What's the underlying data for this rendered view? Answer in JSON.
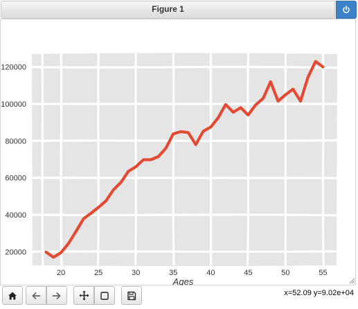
{
  "window": {
    "title": "Figure 1"
  },
  "toolbar": {
    "buttons": [
      {
        "icon": "home-icon",
        "label": "Home"
      },
      {
        "icon": "back-icon",
        "label": "Back"
      },
      {
        "icon": "forward-icon",
        "label": "Forward"
      },
      {
        "icon": "pan-icon",
        "label": "Pan"
      },
      {
        "icon": "zoom-rect-icon",
        "label": "Zoom"
      },
      {
        "icon": "save-icon",
        "label": "Save"
      }
    ]
  },
  "status": {
    "coords": "x=52.09 y=9.02e+04"
  },
  "colors": {
    "line": "#e34a33",
    "panel": "#e5e5e5",
    "grid": "#ffffff",
    "accent": "#3b82c9"
  },
  "chart_data": {
    "type": "line",
    "title": "",
    "xlabel": "Ages",
    "ylabel": "",
    "xlim": [
      16.1,
      56.9
    ],
    "ylim": [
      12600,
      127400
    ],
    "xticks": [
      20,
      25,
      30,
      35,
      40,
      45,
      50,
      55
    ],
    "yticks": [
      20000,
      40000,
      60000,
      80000,
      100000,
      120000
    ],
    "ytick_labels": [
      "20000",
      "40000",
      "60000",
      "80000",
      "100000",
      "120000"
    ],
    "grid": true,
    "style": "xkcd",
    "series": [
      {
        "name": "",
        "x": [
          18,
          19,
          20,
          21,
          22,
          23,
          24,
          25,
          26,
          27,
          28,
          29,
          30,
          31,
          32,
          33,
          34,
          35,
          36,
          37,
          38,
          39,
          40,
          41,
          42,
          43,
          44,
          45,
          46,
          47,
          48,
          49,
          50,
          51,
          52,
          53,
          54,
          55
        ],
        "values": [
          19800,
          17000,
          19500,
          24500,
          31000,
          37800,
          40800,
          44000,
          47500,
          53500,
          57500,
          63500,
          66000,
          69800,
          69800,
          71500,
          76000,
          83800,
          85000,
          84500,
          78000,
          85200,
          87500,
          92500,
          99700,
          95500,
          98000,
          94000,
          99500,
          103000,
          112000,
          101500,
          105000,
          108000,
          101500,
          114500,
          123000,
          120000
        ]
      }
    ]
  }
}
